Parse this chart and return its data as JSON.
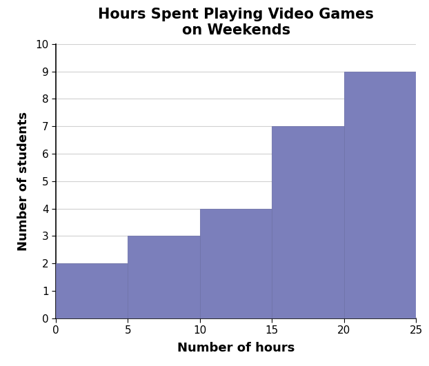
{
  "title": "Hours Spent Playing Video Games\non Weekends",
  "xlabel": "Number of hours",
  "ylabel": "Number of students",
  "bin_edges": [
    0,
    5,
    10,
    15,
    20,
    25
  ],
  "bar_heights": [
    2,
    3,
    4,
    7,
    9
  ],
  "bar_color": "#7b7fbb",
  "bar_edgecolor": "#7074aa",
  "xlim": [
    0,
    25
  ],
  "ylim": [
    0,
    10
  ],
  "yticks": [
    0,
    1,
    2,
    3,
    4,
    5,
    6,
    7,
    8,
    9,
    10
  ],
  "xticks": [
    0,
    5,
    10,
    15,
    20,
    25
  ],
  "title_fontsize": 15,
  "label_fontsize": 13,
  "tick_fontsize": 11,
  "title_fontweight": "bold",
  "label_fontweight": "bold",
  "background_color": "#ffffff",
  "grid_color": "#d0d0d0",
  "spine_color": "#000000"
}
